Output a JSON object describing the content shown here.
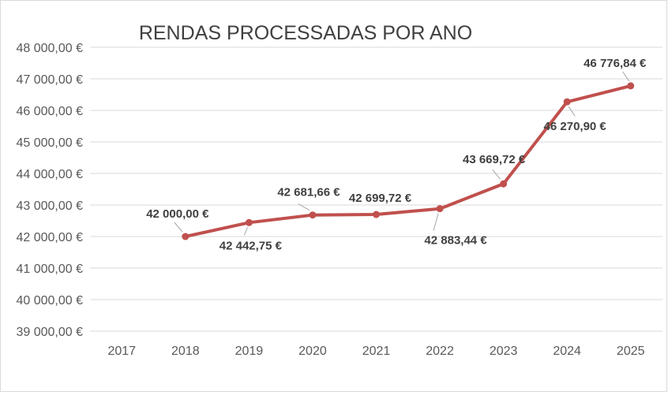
{
  "chart_data": {
    "type": "line",
    "title": "RENDAS PROCESSADAS POR ANO",
    "xlabel": "",
    "ylabel": "",
    "categories": [
      "2017",
      "2018",
      "2019",
      "2020",
      "2021",
      "2022",
      "2023",
      "2024",
      "2025"
    ],
    "series": [
      {
        "values": [
          null,
          42000.0,
          42442.75,
          42681.66,
          42699.72,
          42883.44,
          43669.72,
          46270.9,
          46776.84
        ],
        "labels": [
          "",
          "42 000,00 €",
          "42 442,75 €",
          "42 681,66 €",
          "42 699,72 €",
          "42 883,44 €",
          "43 669,72 €",
          "46 270,90 €",
          "46 776,84 €"
        ],
        "label_side": [
          "",
          "above",
          "below",
          "above",
          "above",
          "below",
          "above",
          "below",
          "above"
        ],
        "color": "#c0504d"
      }
    ],
    "ylim": [
      39000,
      48000
    ],
    "y_ticks": [
      39000,
      40000,
      41000,
      42000,
      43000,
      44000,
      45000,
      46000,
      47000,
      48000
    ],
    "y_tick_labels": [
      "39 000,00 €",
      "40 000,00 €",
      "41 000,00 €",
      "42 000,00 €",
      "43 000,00 €",
      "44 000,00 €",
      "45 000,00 €",
      "46 000,00 €",
      "47 000,00 €",
      "48 000,00 €"
    ],
    "grid": true,
    "legend": "none"
  }
}
